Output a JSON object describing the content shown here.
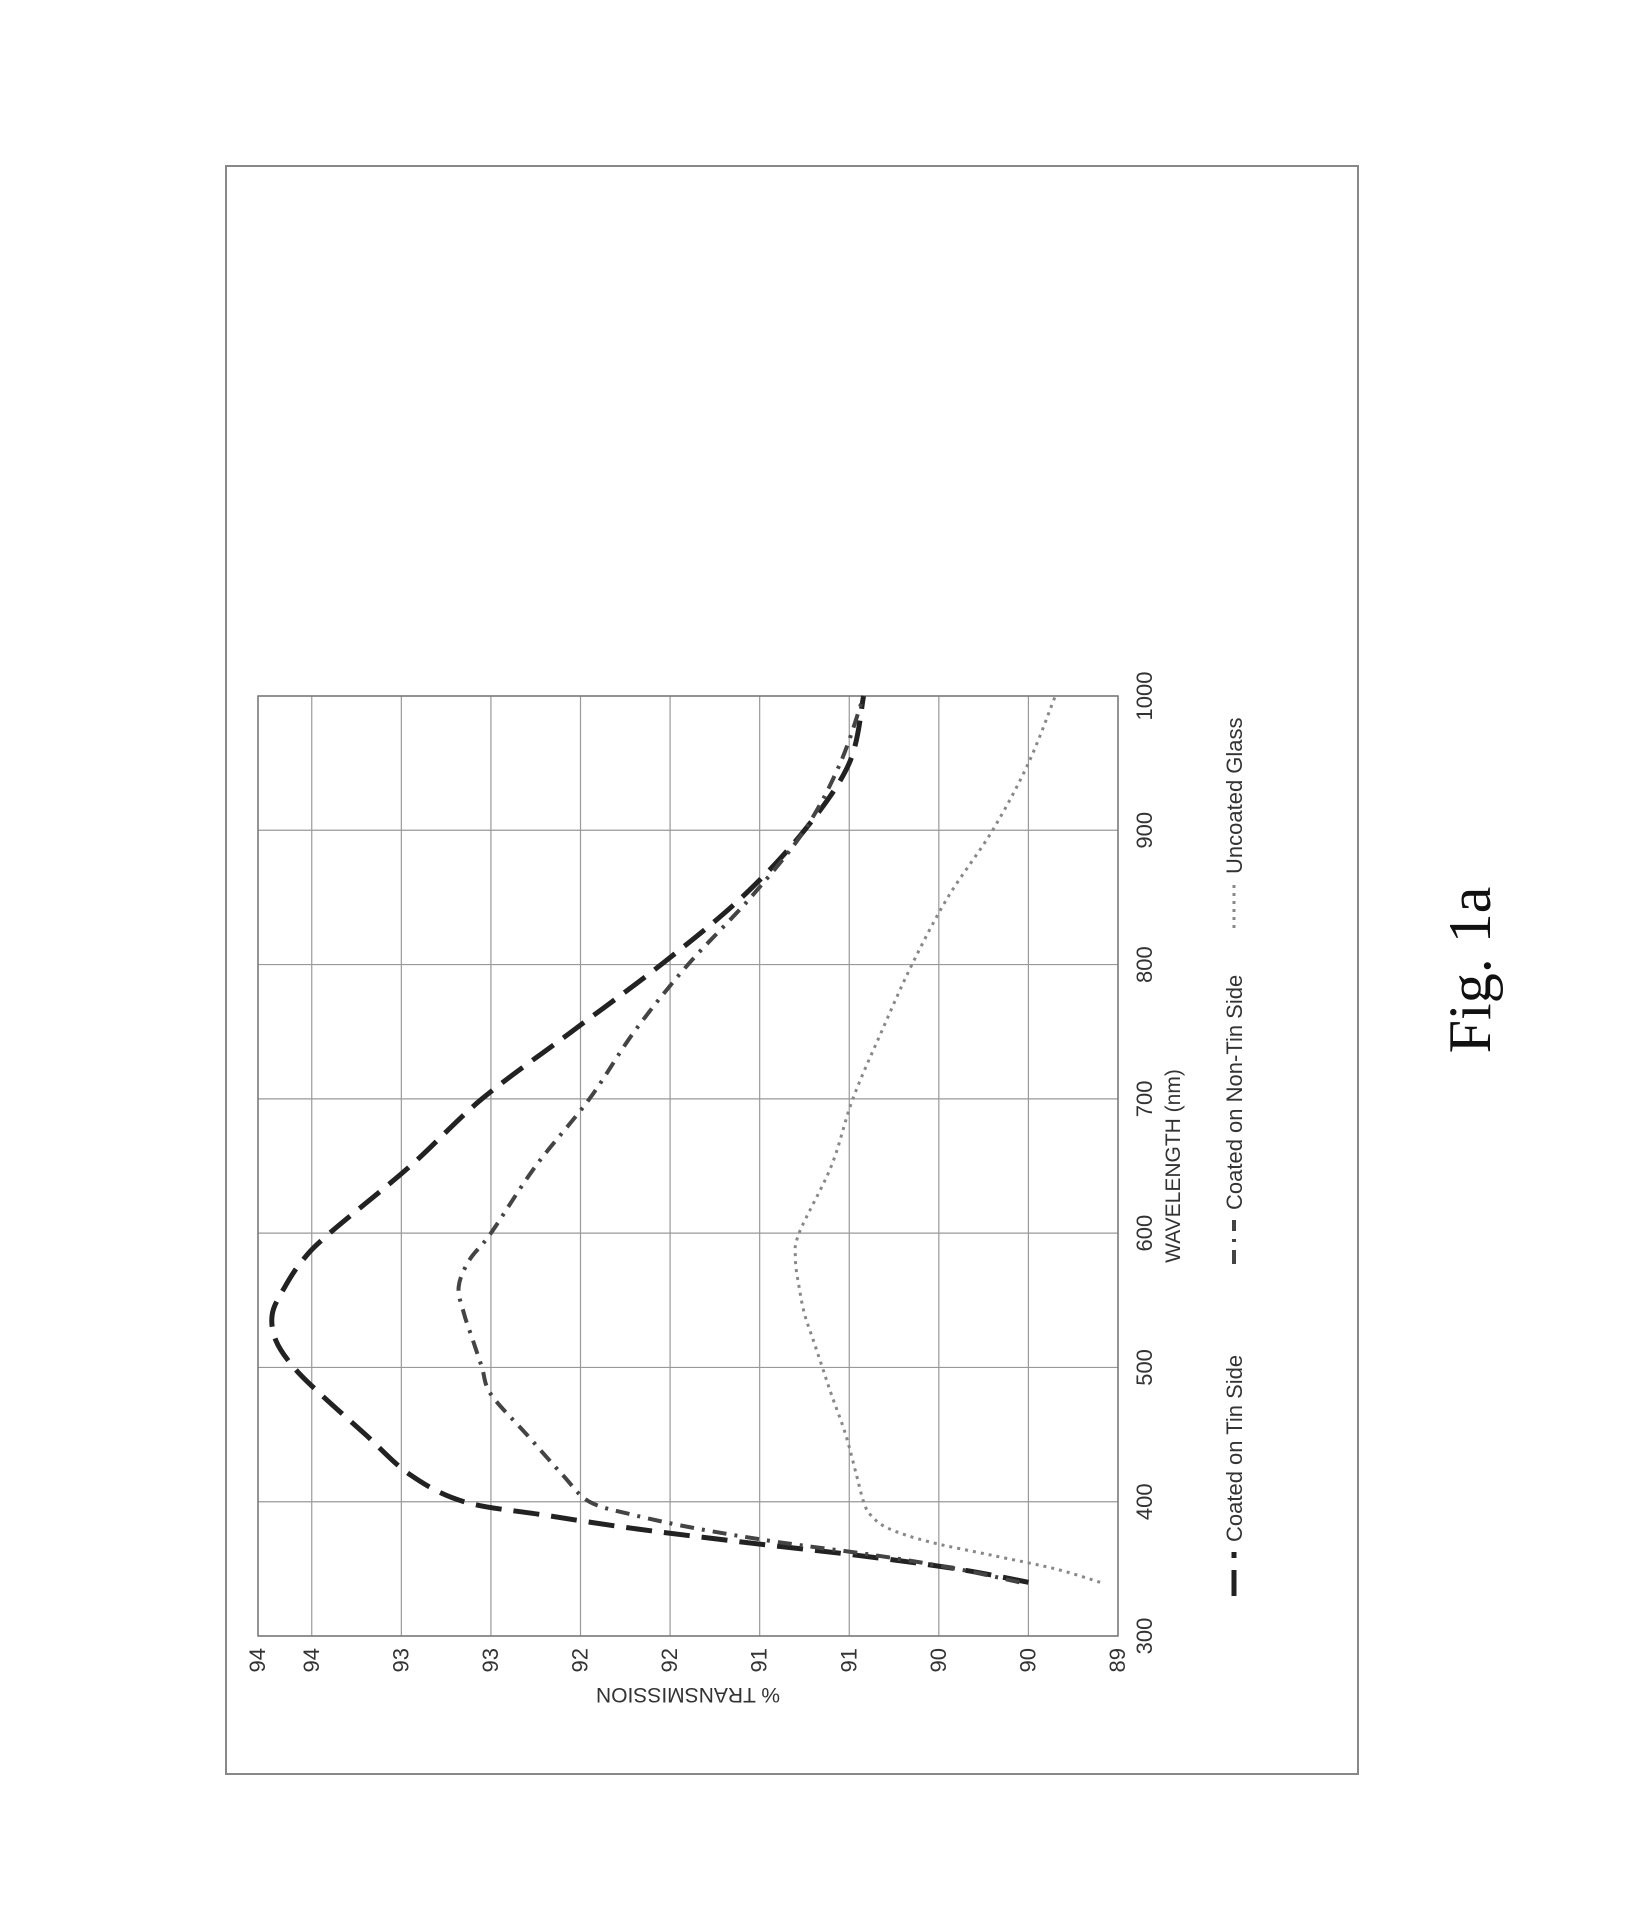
{
  "figure_label": "Fig. 1a",
  "chart_data": {
    "type": "line",
    "title": "",
    "xlabel": "WAVELENGTH (nm)",
    "ylabel": "% TRANSMISSION",
    "xlim": [
      300,
      1000
    ],
    "ylim": [
      89.5,
      94.3
    ],
    "x_ticks": [
      300,
      400,
      500,
      600,
      700,
      800,
      900,
      1000
    ],
    "y_ticks": [
      89.5,
      90,
      90.5,
      91,
      91.5,
      92,
      92.5,
      93,
      93.5,
      94,
      94.3
    ],
    "y_tick_labels": [
      "89",
      "90",
      "90",
      "91",
      "91",
      "92",
      "92",
      "93",
      "93",
      "94",
      "94"
    ],
    "grid": true,
    "legend_position": "bottom",
    "series": [
      {
        "name": "Coated on Tin Side",
        "style": "long-dash",
        "color": "#222222",
        "x": [
          340,
          350,
          360,
          370,
          380,
          390,
          400,
          420,
          450,
          480,
          500,
          520,
          540,
          560,
          580,
          600,
          650,
          700,
          750,
          800,
          850,
          900,
          950,
          1000
        ],
        "y": [
          90.0,
          90.4,
          90.95,
          91.6,
          92.2,
          92.7,
          93.15,
          93.45,
          93.7,
          93.95,
          94.1,
          94.2,
          94.22,
          94.15,
          94.05,
          93.9,
          93.45,
          93.05,
          92.55,
          92.05,
          91.6,
          91.25,
          91.0,
          90.92
        ]
      },
      {
        "name": "Coated on Non-Tin Side",
        "style": "dash-dot",
        "color": "#444444",
        "x": [
          340,
          350,
          360,
          370,
          380,
          390,
          400,
          420,
          450,
          480,
          500,
          520,
          540,
          560,
          580,
          600,
          650,
          700,
          750,
          800,
          850,
          900,
          950,
          1000
        ],
        "y": [
          90.05,
          90.4,
          90.85,
          91.4,
          91.85,
          92.2,
          92.45,
          92.6,
          92.8,
          93.0,
          93.05,
          93.1,
          93.15,
          93.18,
          93.12,
          93.0,
          92.75,
          92.45,
          92.2,
          91.9,
          91.55,
          91.25,
          91.05,
          90.92
        ]
      },
      {
        "name": "Uncoated Glass",
        "style": "dotted",
        "color": "#888888",
        "x": [
          340,
          350,
          360,
          370,
          380,
          390,
          400,
          420,
          450,
          480,
          500,
          520,
          540,
          560,
          580,
          600,
          650,
          700,
          750,
          800,
          850,
          900,
          950,
          1000
        ],
        "y": [
          89.6,
          89.85,
          90.2,
          90.55,
          90.78,
          90.88,
          90.92,
          90.96,
          91.02,
          91.1,
          91.15,
          91.2,
          91.25,
          91.28,
          91.3,
          91.28,
          91.1,
          90.98,
          90.82,
          90.65,
          90.45,
          90.2,
          90.0,
          89.85
        ]
      }
    ]
  }
}
